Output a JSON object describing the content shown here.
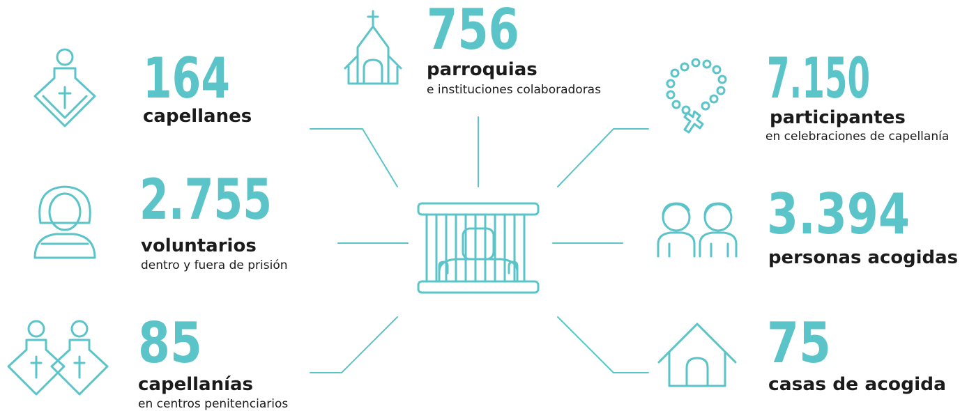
{
  "items": [
    {
      "number": "164",
      "label": "capellanes"
    },
    {
      "number": "756",
      "label": "parroquias",
      "sublabel": "e instituciones colaboradoras"
    },
    {
      "number": "7.150",
      "label": "participantes",
      "sublabel": "en celebraciones de capellanía"
    },
    {
      "number": "2.755",
      "label": "voluntarios",
      "sublabel": "dentro y fuera de prisión"
    },
    {
      "number": "3.394",
      "label": "personas acogidas"
    },
    {
      "number": "85",
      "label": "capellanías",
      "sublabel": "en centros penitenciarios"
    },
    {
      "number": "75",
      "label": "casas de acogida"
    }
  ]
}
